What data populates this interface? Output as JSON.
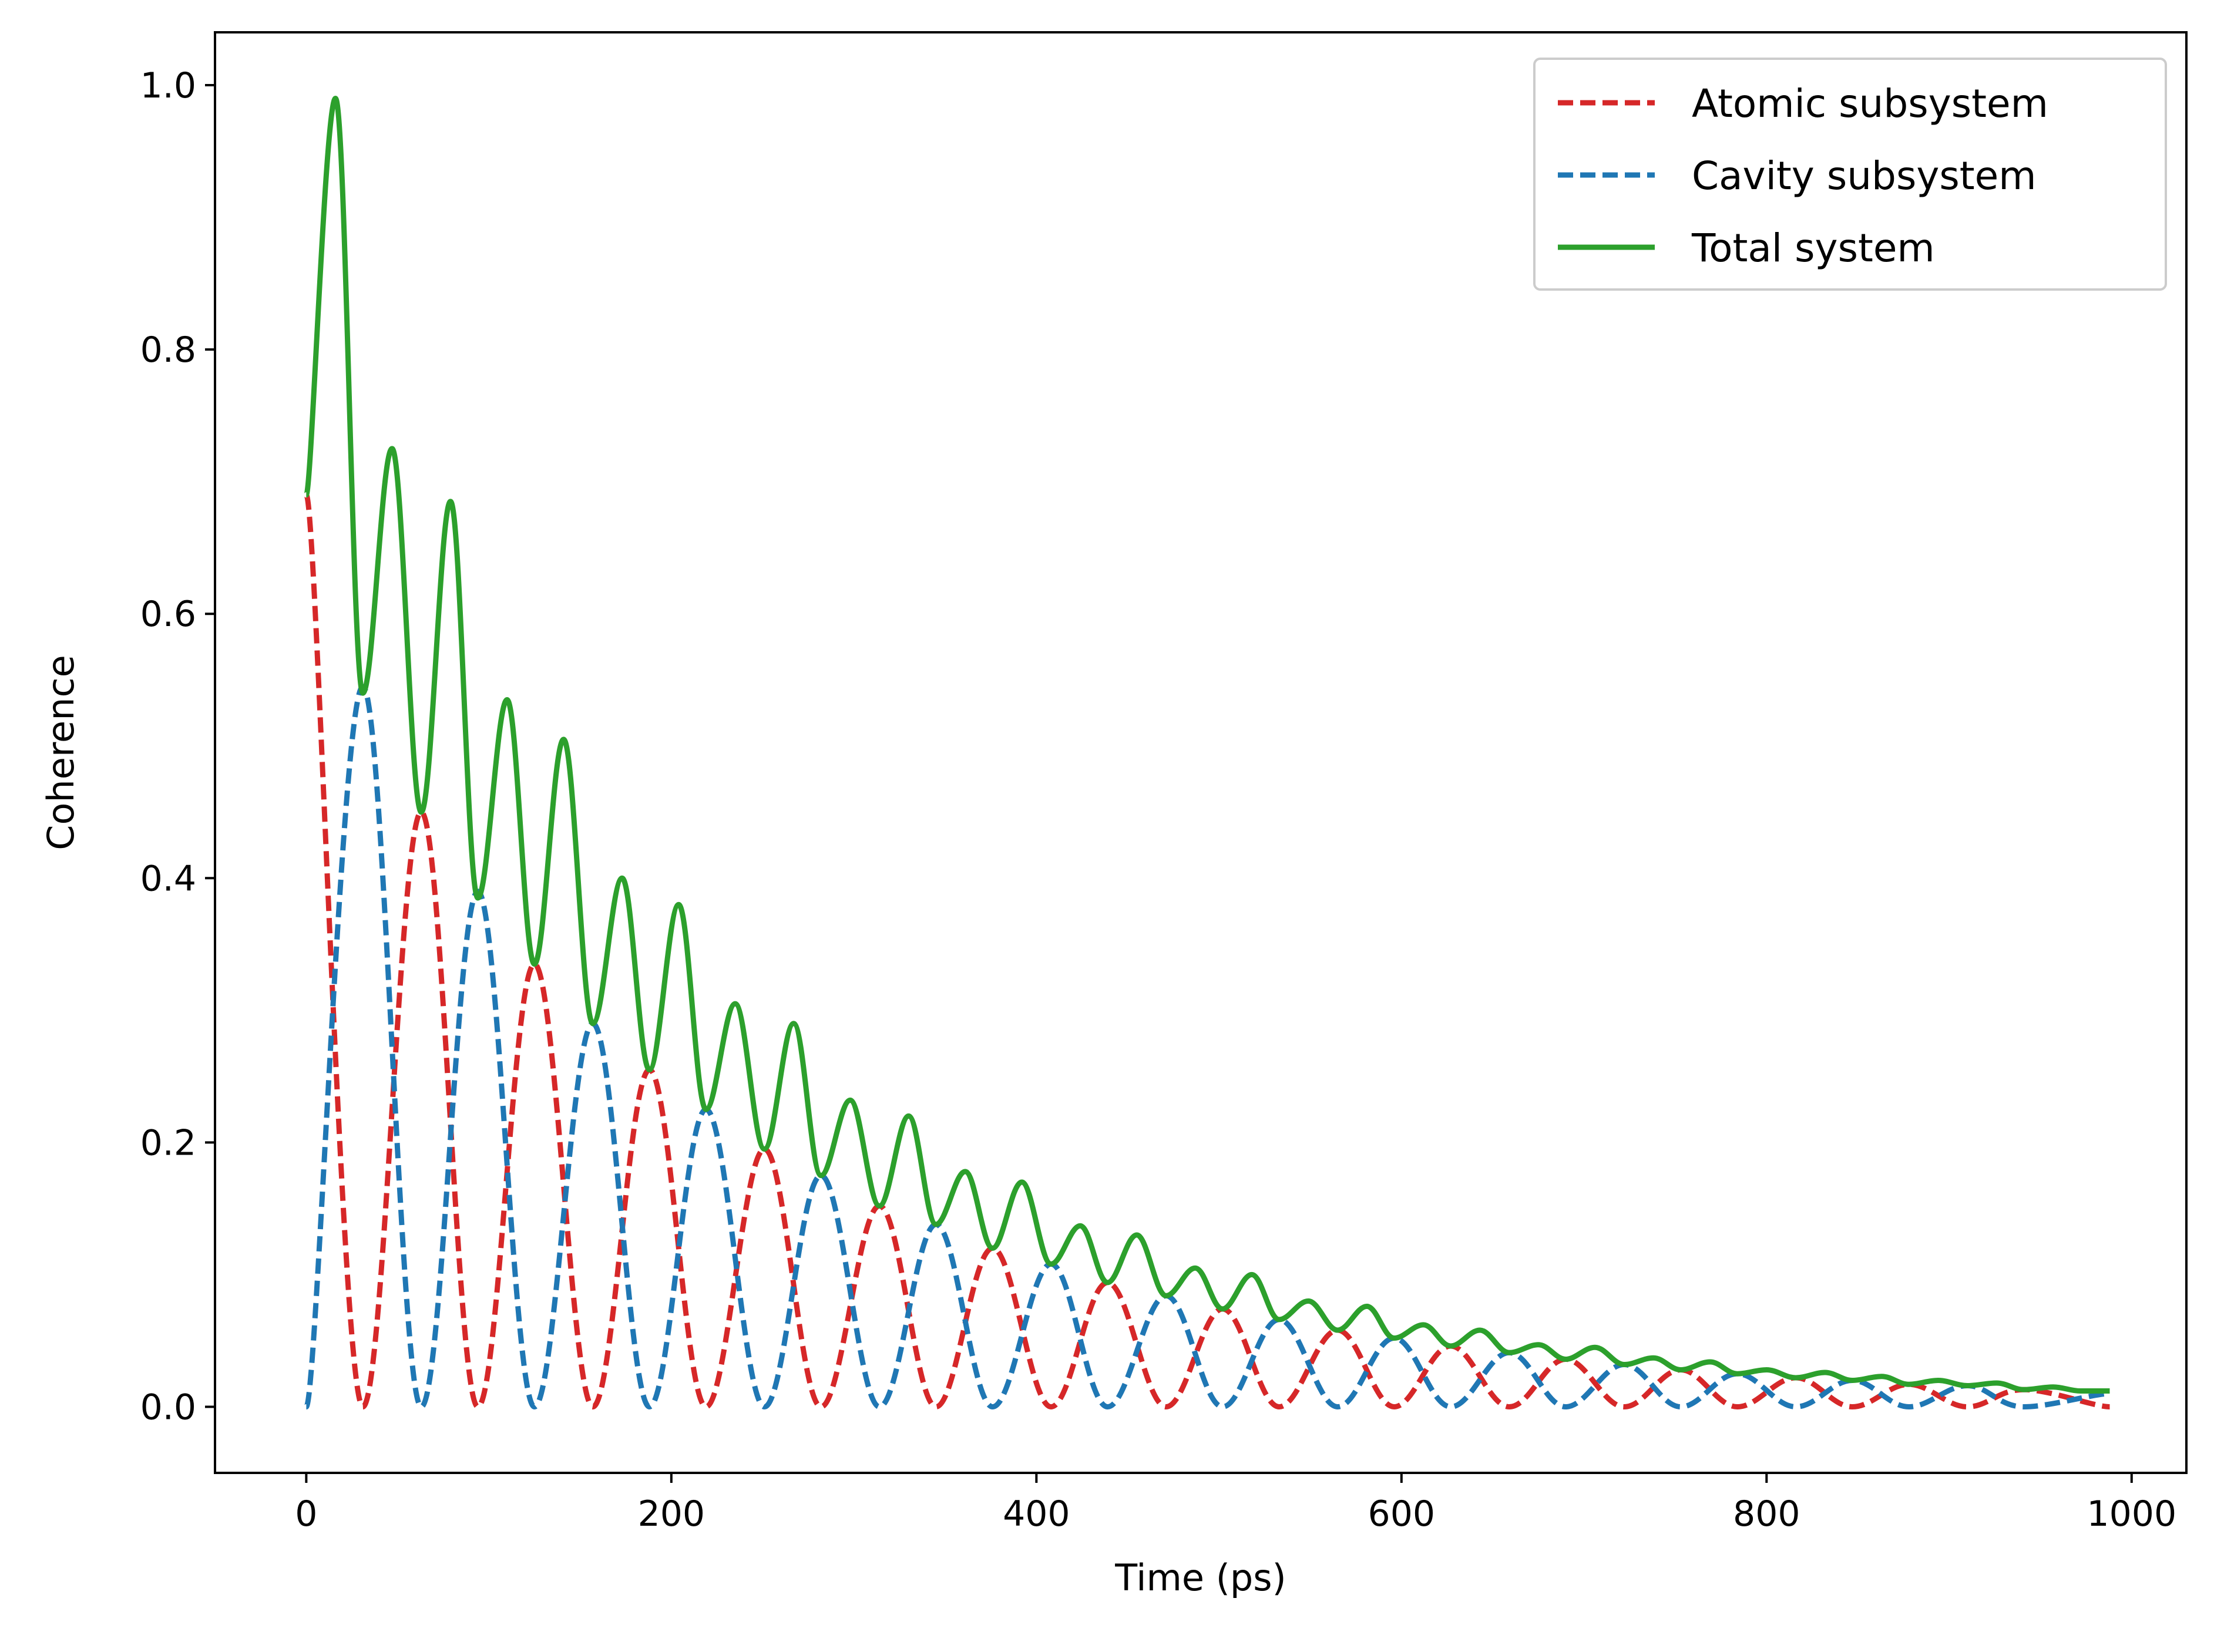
{
  "chart_data": {
    "type": "line",
    "title": "",
    "xlabel": "Time (ps)",
    "ylabel": "Coherence",
    "xlim": [
      -50,
      1030
    ],
    "ylim": [
      -0.05,
      1.04
    ],
    "xticks": [
      0,
      200,
      400,
      600,
      800,
      1000
    ],
    "yticks": [
      0.0,
      0.2,
      0.4,
      0.6,
      0.8,
      1.0
    ],
    "xtick_labels": [
      "0",
      "200",
      "400",
      "600",
      "800",
      "1000"
    ],
    "ytick_labels": [
      "0.0",
      "0.2",
      "0.4",
      "0.6",
      "0.8",
      "1.0"
    ],
    "grid": false,
    "legend_position": "top-right",
    "series": [
      {
        "name": "Atomic subsystem",
        "style": "dashed",
        "color": "#d62728",
        "x": [
          0,
          31,
          63,
          94,
          125,
          157,
          188,
          219,
          251,
          282,
          314,
          345,
          376,
          408,
          439,
          471,
          502,
          533,
          565,
          596,
          627,
          659,
          690,
          722,
          753,
          784,
          816,
          847,
          878,
          910,
          941,
          988
        ],
        "y": [
          0.69,
          0.0,
          0.45,
          0.0,
          0.335,
          0.0,
          0.255,
          0.0,
          0.195,
          0.0,
          0.152,
          0.0,
          0.12,
          0.0,
          0.094,
          0.0,
          0.074,
          0.0,
          0.058,
          0.0,
          0.046,
          0.0,
          0.036,
          0.0,
          0.028,
          0.0,
          0.022,
          0.0,
          0.017,
          0.0,
          0.013,
          0.0
        ]
      },
      {
        "name": "Cavity subsystem",
        "style": "dashed",
        "color": "#1f77b4",
        "x": [
          0,
          31,
          63,
          94,
          125,
          157,
          188,
          219,
          251,
          282,
          314,
          345,
          376,
          408,
          439,
          471,
          502,
          533,
          565,
          596,
          627,
          659,
          690,
          722,
          753,
          784,
          816,
          847,
          878,
          910,
          941,
          988
        ],
        "y": [
          0.0,
          0.545,
          0.0,
          0.39,
          0.0,
          0.29,
          0.0,
          0.225,
          0.0,
          0.175,
          0.0,
          0.138,
          0.0,
          0.108,
          0.0,
          0.084,
          0.0,
          0.066,
          0.0,
          0.052,
          0.0,
          0.041,
          0.0,
          0.032,
          0.0,
          0.025,
          0.0,
          0.02,
          0.0,
          0.016,
          0.0,
          0.01
        ]
      },
      {
        "name": "Total system",
        "style": "solid",
        "color": "#2ca02c",
        "x": [
          0,
          16,
          31,
          47,
          63,
          79,
          94,
          110,
          125,
          141,
          157,
          173,
          188,
          204,
          219,
          235,
          251,
          267,
          282,
          298,
          314,
          330,
          345,
          361,
          376,
          392,
          408,
          424,
          439,
          455,
          471,
          487,
          502,
          518,
          533,
          549,
          565,
          581,
          596,
          612,
          627,
          643,
          659,
          675,
          690,
          706,
          722,
          738,
          753,
          769,
          784,
          800,
          816,
          832,
          847,
          863,
          878,
          894,
          910,
          926,
          941,
          957,
          972,
          988
        ],
        "y": [
          0.69,
          0.99,
          0.54,
          0.725,
          0.45,
          0.685,
          0.385,
          0.535,
          0.335,
          0.505,
          0.29,
          0.4,
          0.255,
          0.38,
          0.225,
          0.305,
          0.195,
          0.29,
          0.175,
          0.232,
          0.152,
          0.22,
          0.138,
          0.178,
          0.12,
          0.17,
          0.108,
          0.137,
          0.094,
          0.13,
          0.084,
          0.105,
          0.074,
          0.1,
          0.066,
          0.08,
          0.058,
          0.076,
          0.052,
          0.062,
          0.046,
          0.058,
          0.041,
          0.047,
          0.036,
          0.045,
          0.032,
          0.037,
          0.028,
          0.034,
          0.025,
          0.028,
          0.022,
          0.026,
          0.02,
          0.023,
          0.017,
          0.02,
          0.016,
          0.018,
          0.013,
          0.015,
          0.012,
          0.012
        ]
      }
    ]
  }
}
